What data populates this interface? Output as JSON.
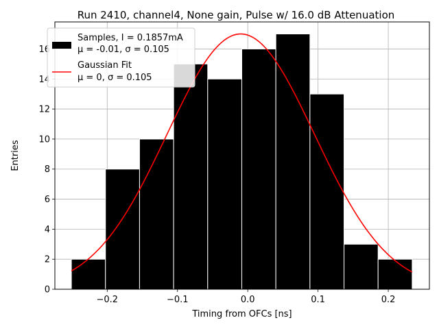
{
  "chart_data": {
    "type": "bar",
    "title": "Run 2410, channel4, None gain, Pulse w/ 16.0 dB Attenuation",
    "xlabel": "Timing from OFCs [ns]",
    "ylabel": "Entries",
    "xlim": [
      -0.2745,
      0.2585
    ],
    "ylim": [
      0,
      17.8
    ],
    "xticks": [
      -0.2,
      -0.1,
      0.0,
      0.1,
      0.2
    ],
    "xtick_labels": [
      "−0.2",
      "−0.1",
      "0.0",
      "0.1",
      "0.2"
    ],
    "yticks": [
      0,
      2,
      4,
      6,
      8,
      10,
      12,
      14,
      16
    ],
    "ytick_labels": [
      "0",
      "2",
      "4",
      "6",
      "8",
      "10",
      "12",
      "14",
      "16"
    ],
    "grid": true,
    "legend_position": "top-left",
    "histogram": {
      "name": "Samples, I = 0.1857mA",
      "name_line2": "μ = -0.01, σ = 0.105",
      "bin_edges": [
        -0.251,
        -0.2025,
        -0.154,
        -0.1055,
        -0.057,
        -0.0085,
        0.04,
        0.0885,
        0.137,
        0.1855,
        0.234
      ],
      "counts": [
        2,
        8,
        10,
        15,
        14,
        16,
        17,
        13,
        3,
        2
      ],
      "color": "#000000",
      "edge_color": "#ffffff"
    },
    "fit": {
      "name": "Gaussian Fit",
      "name_line2": "μ = 0, σ = 0.105",
      "amplitude": 17.0,
      "mu": -0.01,
      "sigma": 0.105,
      "x_range": [
        -0.251,
        0.234
      ],
      "color": "#ff0000"
    }
  }
}
